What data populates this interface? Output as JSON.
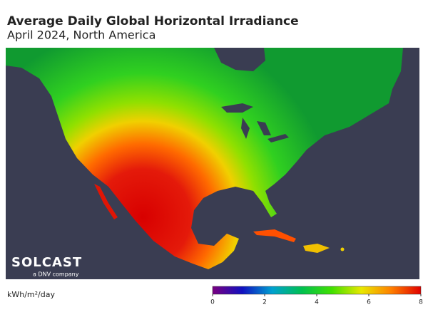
{
  "header": {
    "title": "Average Daily Global Horizontal Irradiance",
    "subtitle": "April 2024, North America"
  },
  "logo": {
    "name": "SOLCAST",
    "tagline": "a DNV company"
  },
  "colorbar": {
    "label": "kWh/m²/day",
    "lim": [
      0,
      8
    ],
    "ticks": [
      0,
      2,
      4,
      6,
      8
    ],
    "colors": [
      "#7a0080",
      "#1010c0",
      "#00a0d0",
      "#00c050",
      "#40e000",
      "#e8e800",
      "#ff8000",
      "#e00000"
    ]
  }
}
